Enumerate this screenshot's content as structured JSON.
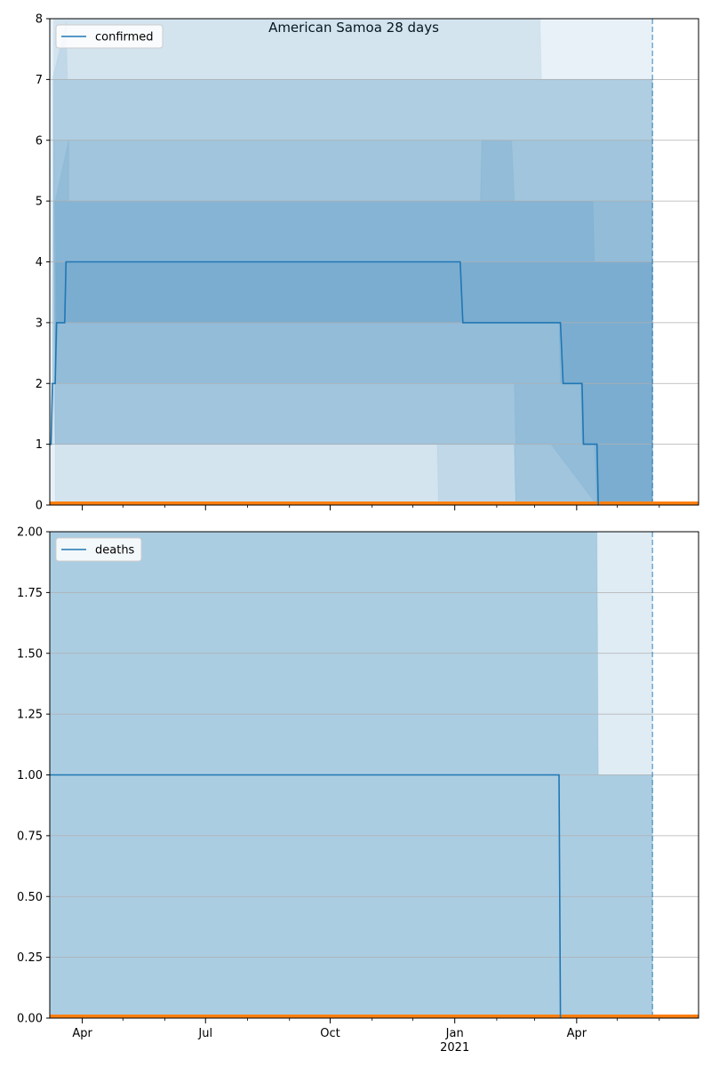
{
  "title": "American Samoa 28 days",
  "colors": {
    "series": "#1f77b4",
    "baseline": "#ff7f0e",
    "band": "#1f77b4",
    "grid": "#b0b0b0",
    "forecast_line": "#1f77b4"
  },
  "x_axis": {
    "domain": [
      "2020-03-08",
      "2021-06-30"
    ],
    "major_ticks": [
      {
        "date": "2020-04-01",
        "label": "Apr",
        "sublabel": ""
      },
      {
        "date": "2020-07-01",
        "label": "Jul",
        "sublabel": ""
      },
      {
        "date": "2020-10-01",
        "label": "Oct",
        "sublabel": ""
      },
      {
        "date": "2021-01-01",
        "label": "Jan",
        "sublabel": "2021"
      },
      {
        "date": "2021-04-01",
        "label": "Apr",
        "sublabel": ""
      }
    ],
    "minor_ticks": [
      "2020-05-01",
      "2020-06-01",
      "2020-08-01",
      "2020-09-01",
      "2020-11-01",
      "2020-12-01",
      "2021-02-01",
      "2021-03-01",
      "2021-05-01",
      "2021-06-01"
    ],
    "forecast_start": "2021-05-27"
  },
  "chart_data": [
    {
      "type": "line",
      "legend": "confirmed",
      "legend_position": "top-left",
      "grid": "y",
      "ylim": [
        0,
        8
      ],
      "yticks": [
        {
          "value": 0,
          "label": "0"
        },
        {
          "value": 1,
          "label": "1"
        },
        {
          "value": 2,
          "label": "2"
        },
        {
          "value": 3,
          "label": "3"
        },
        {
          "value": 4,
          "label": "4"
        },
        {
          "value": 5,
          "label": "5"
        },
        {
          "value": 6,
          "label": "6"
        },
        {
          "value": 7,
          "label": "7"
        },
        {
          "value": 8,
          "label": "8"
        }
      ],
      "series": [
        {
          "points": [
            [
              "2020-03-08",
              1
            ],
            [
              "2020-03-09",
              1
            ],
            [
              "2020-03-10",
              2
            ],
            [
              "2020-03-12",
              2
            ],
            [
              "2020-03-13",
              3
            ],
            [
              "2020-03-19",
              3
            ],
            [
              "2020-03-20",
              4
            ],
            [
              "2021-01-05",
              4
            ],
            [
              "2021-01-07",
              3
            ],
            [
              "2021-03-20",
              3
            ],
            [
              "2021-03-22",
              2
            ],
            [
              "2021-04-05",
              2
            ],
            [
              "2021-04-06",
              1
            ],
            [
              "2021-04-16",
              1
            ],
            [
              "2021-04-17",
              0
            ]
          ]
        }
      ],
      "baseline": [
        [
          "2020-03-08",
          0
        ],
        [
          "2021-06-30",
          0
        ]
      ],
      "bands": [
        {
          "opacity": 0.1,
          "points": [
            [
              "2020-03-08",
              8
            ],
            [
              "2021-05-27",
              8
            ],
            [
              "2021-05-27",
              0
            ],
            [
              "2020-03-08",
              0
            ]
          ]
        },
        {
          "opacity": 0.1,
          "points": [
            [
              "2020-03-11",
              8
            ],
            [
              "2020-03-20",
              8
            ],
            [
              "2020-03-21",
              7
            ],
            [
              "2021-05-27",
              7
            ],
            [
              "2021-05-27",
              0
            ],
            [
              "2021-04-16",
              0
            ],
            [
              "2021-03-13",
              1
            ],
            [
              "2021-02-15",
              1
            ],
            [
              "2021-02-14",
              2
            ],
            [
              "2021-01-01",
              2
            ],
            [
              "2020-03-13",
              2
            ],
            [
              "2020-03-10",
              2
            ]
          ]
        },
        {
          "opacity": 0.1,
          "points": [
            [
              "2020-03-11",
              7
            ],
            [
              "2021-05-27",
              7
            ],
            [
              "2021-05-27",
              0
            ],
            [
              "2021-02-15",
              0
            ],
            [
              "2021-02-14",
              1
            ],
            [
              "2020-12-31",
              1
            ],
            [
              "2020-03-12",
              1
            ],
            [
              "2020-03-10",
              2
            ]
          ]
        },
        {
          "opacity": 0.1,
          "points": [
            [
              "2020-03-10",
              7
            ],
            [
              "2020-03-21",
              8
            ],
            [
              "2021-03-05",
              8
            ],
            [
              "2021-03-06",
              7
            ],
            [
              "2021-05-27",
              7
            ],
            [
              "2021-05-27",
              0
            ],
            [
              "2021-04-16",
              0
            ],
            [
              "2021-04-14",
              1
            ],
            [
              "2021-04-05",
              1
            ],
            [
              "2021-04-04",
              2
            ],
            [
              "2021-03-20",
              2
            ],
            [
              "2021-03-19",
              3
            ],
            [
              "2021-01-05",
              3
            ],
            [
              "2020-03-14",
              3
            ],
            [
              "2020-03-12",
              2
            ]
          ]
        },
        {
          "opacity": 0.1,
          "points": [
            [
              "2020-03-11",
              6
            ],
            [
              "2020-03-22",
              6
            ],
            [
              "2020-03-22",
              5
            ],
            [
              "2021-01-20",
              5
            ],
            [
              "2021-01-21",
              6
            ],
            [
              "2021-05-27",
              6
            ],
            [
              "2021-05-27",
              0
            ],
            [
              "2020-12-20",
              0
            ],
            [
              "2020-12-19",
              1
            ],
            [
              "2020-03-12",
              1
            ],
            [
              "2020-03-10",
              1
            ]
          ]
        },
        {
          "opacity": 0.1,
          "points": [
            [
              "2020-03-12",
              5
            ],
            [
              "2020-03-22",
              6
            ],
            [
              "2021-02-12",
              6
            ],
            [
              "2021-02-14",
              5
            ],
            [
              "2021-05-27",
              5
            ],
            [
              "2021-05-27",
              0
            ],
            [
              "2021-04-16",
              0
            ],
            [
              "2021-04-16",
              1
            ],
            [
              "2021-04-06",
              1
            ],
            [
              "2021-04-05",
              2
            ],
            [
              "2021-03-22",
              2
            ],
            [
              "2021-03-20",
              3
            ],
            [
              "2021-01-07",
              3
            ],
            [
              "2020-03-20",
              3
            ],
            [
              "2020-03-13",
              3
            ]
          ]
        },
        {
          "opacity": 0.1,
          "points": [
            [
              "2020-03-11",
              5
            ],
            [
              "2021-04-13",
              5
            ],
            [
              "2021-04-14",
              4
            ],
            [
              "2021-05-27",
              4
            ],
            [
              "2021-05-27",
              0
            ],
            [
              "2021-02-15",
              0
            ],
            [
              "2021-02-14",
              1
            ],
            [
              "2020-12-31",
              1
            ],
            [
              "2020-03-12",
              1
            ]
          ]
        },
        {
          "opacity": 0.1,
          "points": [
            [
              "2020-03-12",
              4
            ],
            [
              "2021-05-27",
              4
            ],
            [
              "2021-05-27",
              0
            ],
            [
              "2020-03-12",
              0
            ]
          ]
        }
      ]
    },
    {
      "type": "line",
      "legend": "deaths",
      "legend_position": "top-left",
      "grid": "y",
      "ylim": [
        0,
        2
      ],
      "yticks": [
        {
          "value": 0,
          "label": "0.00"
        },
        {
          "value": 0.25,
          "label": "0.25"
        },
        {
          "value": 0.5,
          "label": "0.50"
        },
        {
          "value": 0.75,
          "label": "0.75"
        },
        {
          "value": 1,
          "label": "1.00"
        },
        {
          "value": 1.25,
          "label": "1.25"
        },
        {
          "value": 1.5,
          "label": "1.50"
        },
        {
          "value": 1.75,
          "label": "1.75"
        },
        {
          "value": 2,
          "label": "2.00"
        }
      ],
      "series": [
        {
          "points": [
            [
              "2020-03-08",
              1
            ],
            [
              "2021-03-19",
              1
            ],
            [
              "2021-03-20",
              0
            ]
          ]
        }
      ],
      "baseline": [
        [
          "2020-03-08",
          0
        ],
        [
          "2021-06-30",
          0
        ]
      ],
      "bands": [
        {
          "opacity": 0.14,
          "points": [
            [
              "2020-03-08",
              2
            ],
            [
              "2021-05-27",
              2
            ],
            [
              "2021-05-27",
              0
            ],
            [
              "2020-03-08",
              0
            ]
          ]
        },
        {
          "opacity": 0.14,
          "points": [
            [
              "2020-03-08",
              2
            ],
            [
              "2021-04-16",
              2
            ],
            [
              "2021-04-17",
              1
            ],
            [
              "2021-05-27",
              1
            ],
            [
              "2021-05-27",
              0
            ],
            [
              "2020-03-08",
              0
            ]
          ]
        },
        {
          "opacity": 0.14,
          "points": [
            [
              "2020-03-08",
              2
            ],
            [
              "2021-04-16",
              2
            ],
            [
              "2021-04-17",
              1
            ],
            [
              "2021-05-27",
              1
            ],
            [
              "2021-05-27",
              0
            ],
            [
              "2020-03-08",
              0
            ]
          ]
        }
      ]
    }
  ]
}
